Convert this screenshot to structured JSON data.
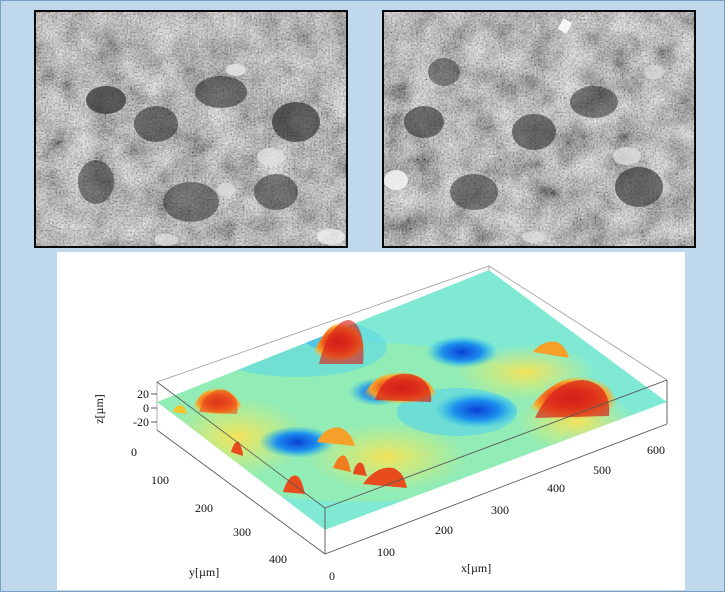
{
  "figure": {
    "top_images": [
      {
        "kind": "grayscale microscope photograph",
        "position": "left"
      },
      {
        "kind": "grayscale microscope photograph",
        "position": "right"
      }
    ],
    "surface_plot": {
      "colormap": [
        "#1565e0",
        "#19b6ee",
        "#7fe9d3",
        "#e4f06a",
        "#f7c52d",
        "#f17c1e",
        "#d9221a"
      ],
      "axes": {
        "x_label": "x[µm]",
        "x_ticks": [
          "0",
          "100",
          "200",
          "300",
          "400",
          "500",
          "600"
        ],
        "y_label": "y[µm]",
        "y_ticks": [
          "0",
          "100",
          "200",
          "300",
          "400"
        ],
        "z_label": "z[µm]",
        "z_ticks": [
          "20",
          "0",
          "-20"
        ]
      }
    }
  }
}
